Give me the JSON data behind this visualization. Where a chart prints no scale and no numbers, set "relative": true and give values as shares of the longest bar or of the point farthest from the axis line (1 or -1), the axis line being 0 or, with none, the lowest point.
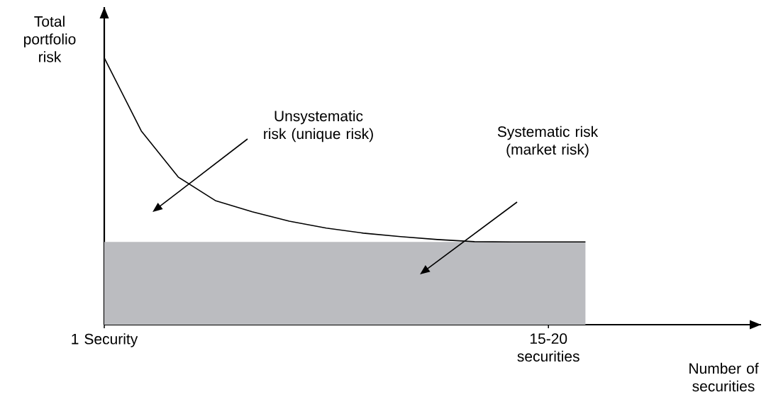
{
  "chart_data": {
    "type": "line",
    "relative": true,
    "ylabel": "Total portfolio risk",
    "categories": [
      "1 Security",
      null,
      null,
      null,
      null,
      null,
      null,
      null,
      null,
      null,
      null,
      null,
      "15-20 securities",
      null
    ],
    "series": [
      {
        "type": "area",
        "color": "#bbbcc0",
        "values": [
          0.31,
          0.31,
          0.31,
          0.31,
          0.31,
          0.31,
          0.31,
          0.31,
          0.31,
          0.31,
          0.31,
          0.31,
          0.31,
          0.31
        ]
      },
      {
        "color": "#000000",
        "values": [
          1,
          0.726,
          0.553,
          0.465,
          0.423,
          0.388,
          0.362,
          0.343,
          0.33,
          0.319,
          0.311,
          0.31,
          0.31,
          0.31
        ]
      }
    ],
    "annotations": [
      "Unsystematic risk (unique risk)",
      "Systematic risk (market risk)",
      "Number of securities"
    ]
  }
}
